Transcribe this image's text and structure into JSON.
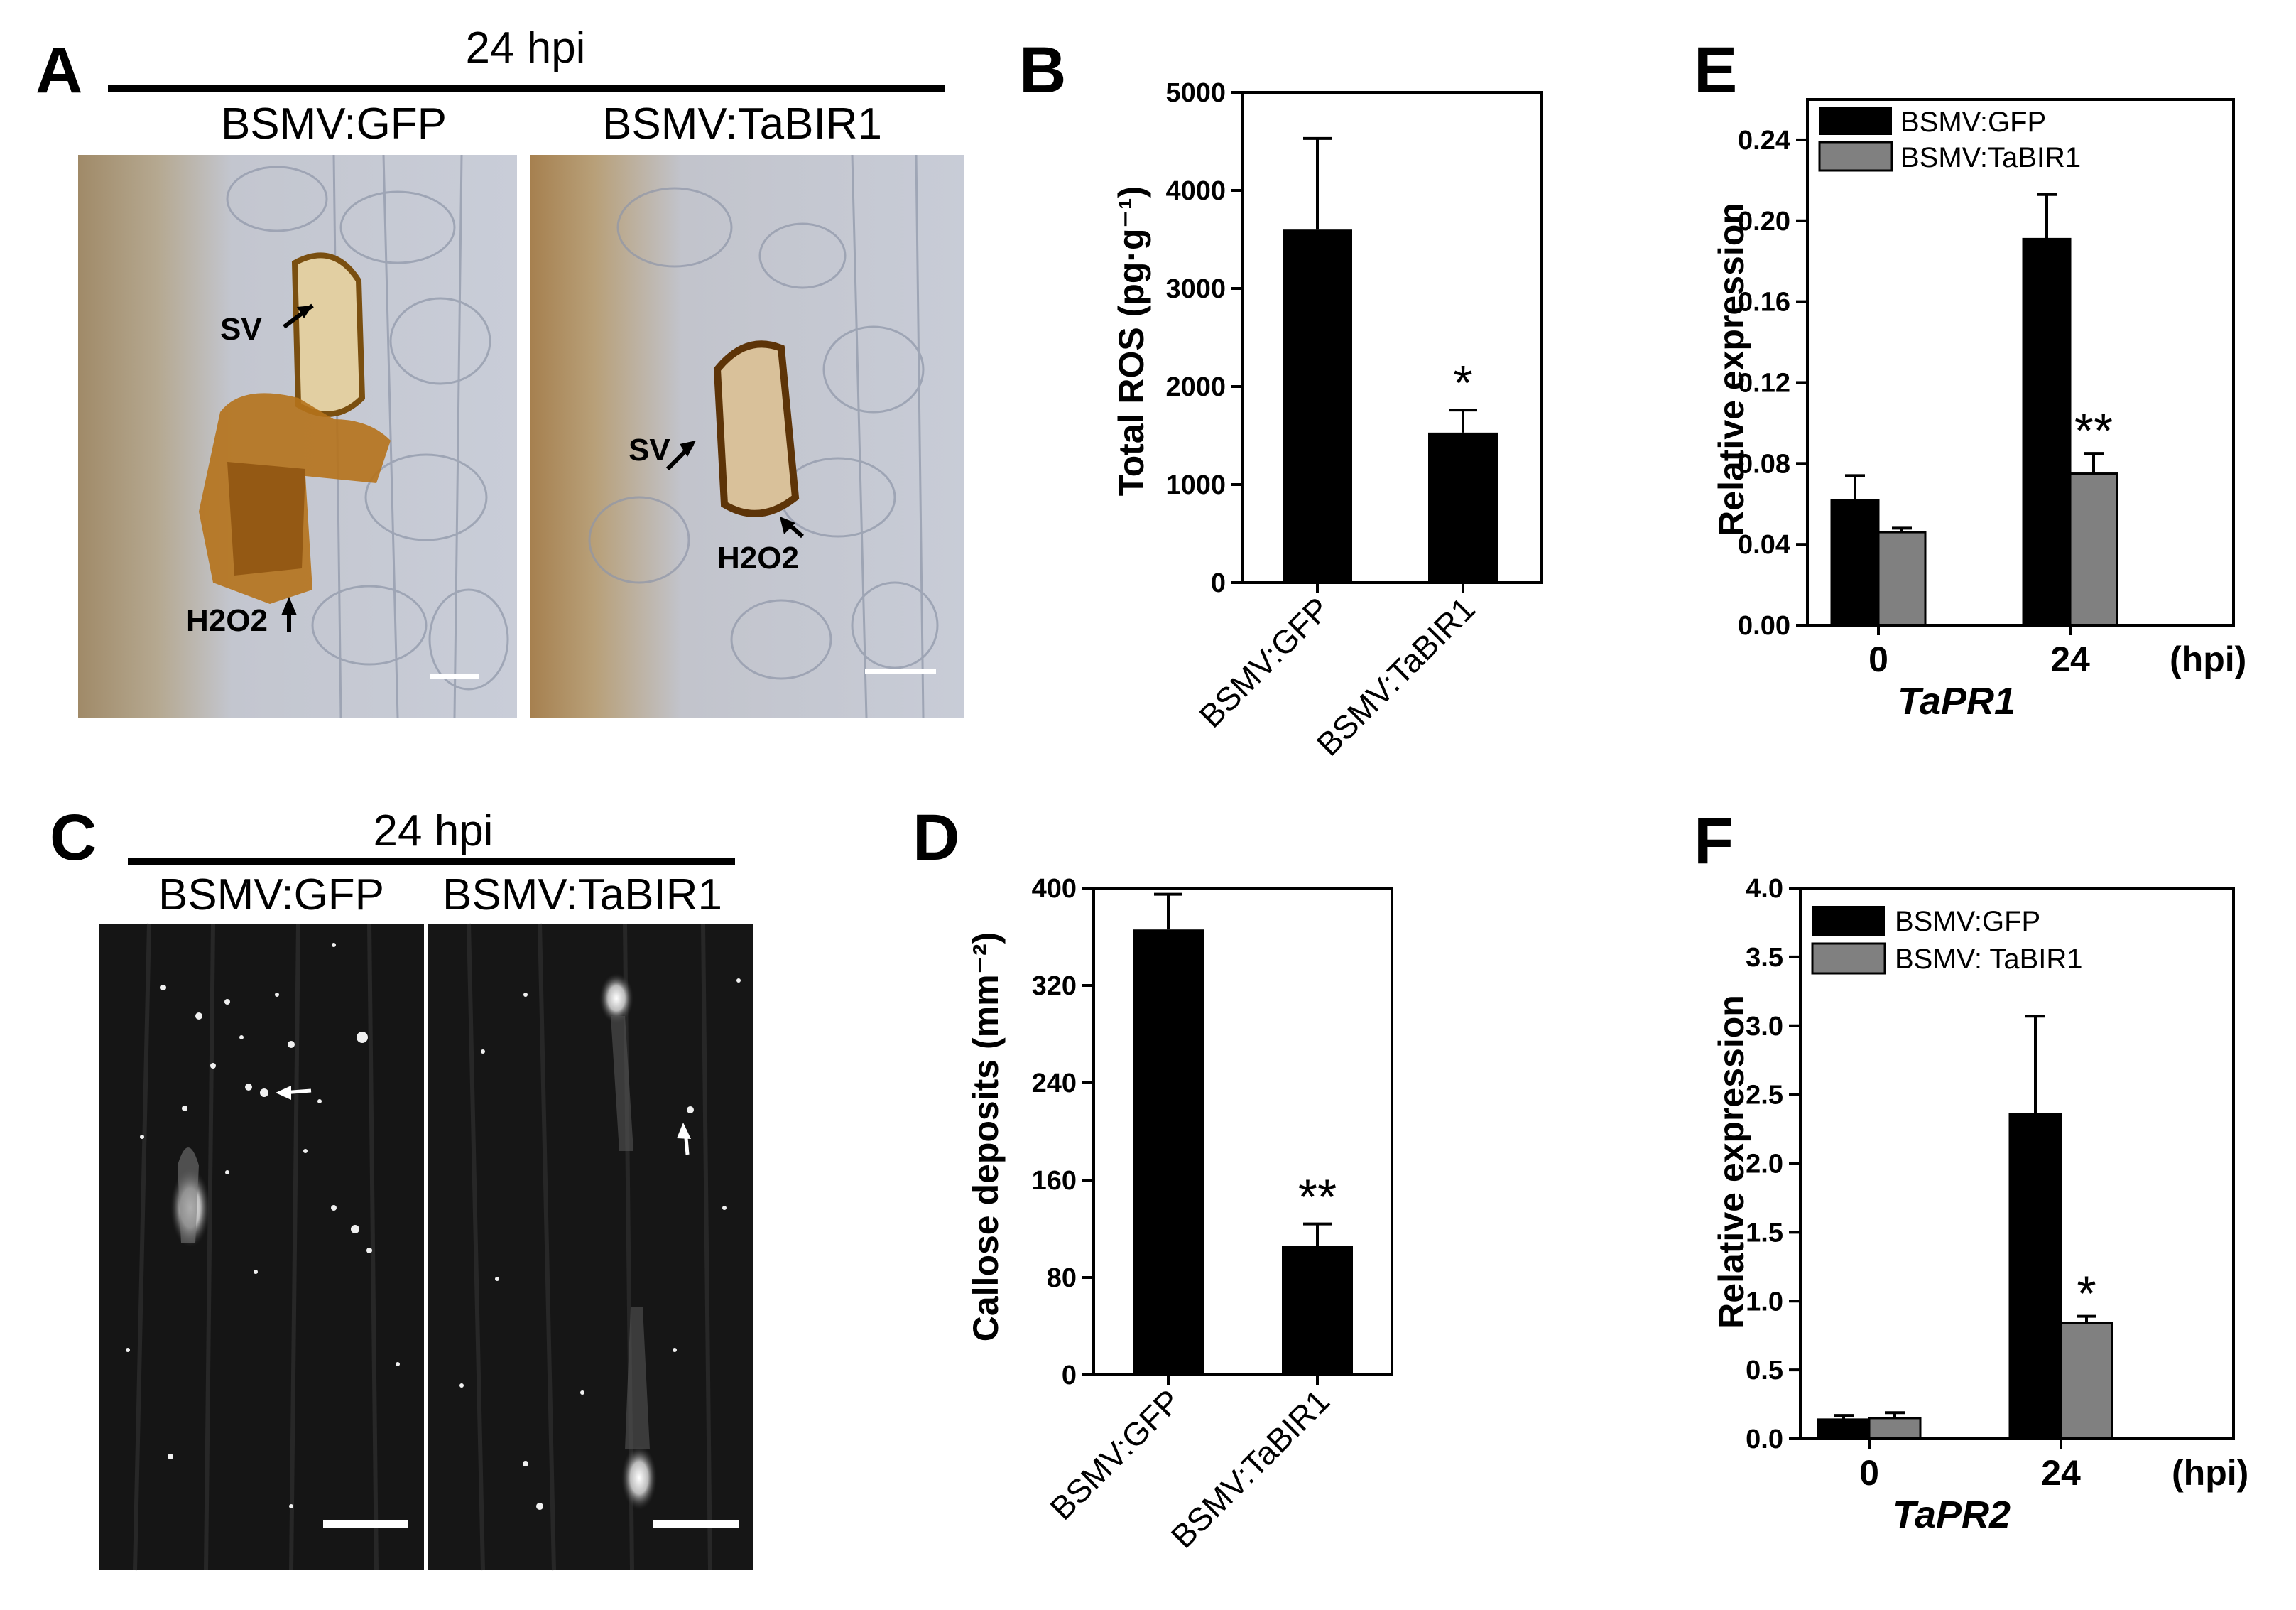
{
  "panels": {
    "a": {
      "letter": "A",
      "header": "24 hpi",
      "left_label": "BSMV:GFP",
      "right_label": "BSMV:TaBIR1",
      "sv_left": "SV",
      "sv_right": "SV",
      "h2o2_left": "H2O2",
      "h2o2_right": "H2O2"
    },
    "c": {
      "letter": "C",
      "header": "24 hpi",
      "left_label": "BSMV:GFP",
      "right_label": "BSMV:TaBIR1"
    },
    "b_letter": "B",
    "d_letter": "D",
    "e_letter": "E",
    "f_letter": "F"
  },
  "colors": {
    "bsmv_gfp": "#000000",
    "bsmv_tabir1": "#808080",
    "micrograph_bg_a": "#c5cbd6",
    "fluorescence_bg": "#151515"
  },
  "chart_data": [
    {
      "id": "B",
      "type": "bar",
      "categories": [
        "BSMV:GFP",
        "BSMV:TaBIR1"
      ],
      "values": [
        3600,
        1530
      ],
      "errors": [
        930,
        230
      ],
      "significance": [
        "",
        "*"
      ],
      "ylabel": "Total ROS (pg·g⁻¹)",
      "ylim": [
        0,
        5000
      ],
      "yticks": [
        "0",
        "1000",
        "2000",
        "3000",
        "4000",
        "5000"
      ],
      "grid": false
    },
    {
      "id": "D",
      "type": "bar",
      "categories": [
        "BSMV:GFP",
        "BSMV:TaBIR1"
      ],
      "values": [
        366,
        106
      ],
      "errors": [
        29,
        18
      ],
      "significance": [
        "",
        "**"
      ],
      "ylabel": "Callose deposits (mm⁻²)",
      "ylim": [
        0,
        400
      ],
      "yticks": [
        "0",
        "80",
        "160",
        "240",
        "320",
        "400"
      ],
      "grid": false
    },
    {
      "id": "E",
      "type": "bar",
      "categories": [
        "0",
        "24"
      ],
      "x_unit": "(hpi)",
      "gene": "TaPR1",
      "series": [
        {
          "name": "BSMV:GFP",
          "values": [
            0.062,
            0.191
          ],
          "errors": [
            0.012,
            0.022
          ]
        },
        {
          "name": "BSMV:TaBIR1",
          "values": [
            0.046,
            0.075
          ],
          "errors": [
            0.002,
            0.01
          ]
        }
      ],
      "significance": [
        "",
        "**"
      ],
      "ylabel": "Relative expression",
      "ylim": [
        0,
        0.26
      ],
      "yticks": [
        "0.00",
        "0.04",
        "0.08",
        "0.12",
        "0.16",
        "0.20",
        "0.24"
      ],
      "legend": "top-left",
      "grid": false
    },
    {
      "id": "F",
      "type": "bar",
      "categories": [
        "0",
        "24"
      ],
      "x_unit": "(hpi)",
      "gene": "TaPR2",
      "series": [
        {
          "name": "BSMV:GFP",
          "values": [
            0.14,
            2.36
          ],
          "errors": [
            0.03,
            0.71
          ]
        },
        {
          "name": "BSMV: TaBIR1",
          "values": [
            0.15,
            0.84
          ],
          "errors": [
            0.04,
            0.05
          ]
        }
      ],
      "significance": [
        "",
        "*"
      ],
      "ylabel": "Relative expression",
      "ylim": [
        0,
        4.0
      ],
      "yticks": [
        "0.0",
        "0.5",
        "1.0",
        "1.5",
        "2.0",
        "2.5",
        "3.0",
        "3.5",
        "4.0"
      ],
      "legend": "top-left",
      "grid": false
    }
  ]
}
